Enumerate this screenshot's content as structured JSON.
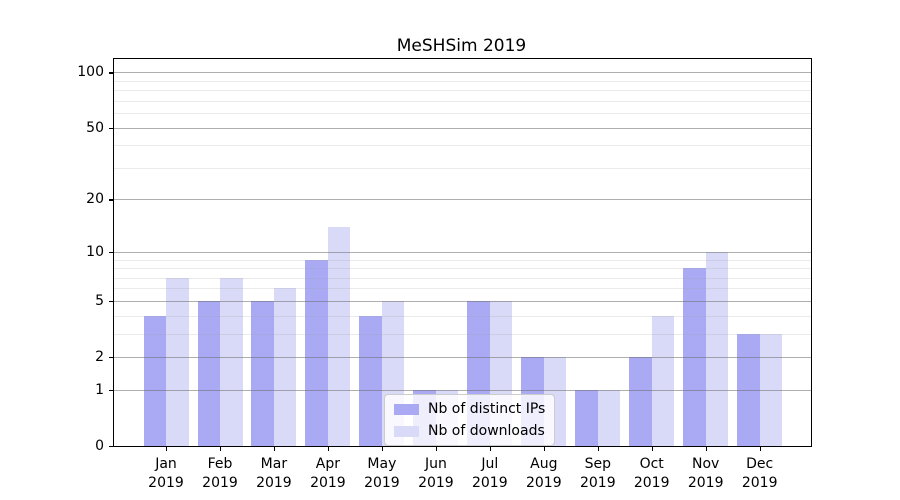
{
  "figure": {
    "title": "MeSHSim 2019"
  },
  "chart_data": {
    "type": "bar",
    "title": "MeSHSim 2019",
    "yscale": "log1p",
    "grid": true,
    "legend_position": "lower center-right inside plot",
    "categories": [
      {
        "month": "Jan",
        "year": "2019"
      },
      {
        "month": "Feb",
        "year": "2019"
      },
      {
        "month": "Mar",
        "year": "2019"
      },
      {
        "month": "Apr",
        "year": "2019"
      },
      {
        "month": "May",
        "year": "2019"
      },
      {
        "month": "Jun",
        "year": "2019"
      },
      {
        "month": "Jul",
        "year": "2019"
      },
      {
        "month": "Aug",
        "year": "2019"
      },
      {
        "month": "Sep",
        "year": "2019"
      },
      {
        "month": "Oct",
        "year": "2019"
      },
      {
        "month": "Nov",
        "year": "2019"
      },
      {
        "month": "Dec",
        "year": "2019"
      }
    ],
    "series": [
      {
        "name": "Nb of distinct IPs",
        "color": "#a9a9f4",
        "values": [
          4,
          5,
          5,
          9,
          4,
          1,
          5,
          2,
          1,
          2,
          8,
          3
        ]
      },
      {
        "name": "Nb of downloads",
        "color": "#d9d9f8",
        "values": [
          7,
          7,
          6,
          14,
          5,
          1,
          5,
          2,
          1,
          4,
          10,
          3
        ]
      }
    ],
    "yticks": [
      0,
      1,
      2,
      5,
      10,
      20,
      50,
      100
    ],
    "minor_gridline_values": [
      3,
      4,
      6,
      7,
      8,
      9,
      30,
      40,
      60,
      70,
      80,
      90
    ],
    "ylim": [
      0,
      115
    ],
    "xlabel": "",
    "ylabel": ""
  }
}
